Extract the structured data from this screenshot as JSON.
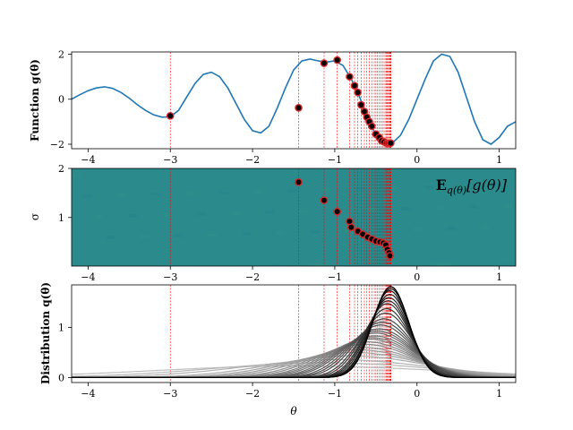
{
  "chart_data": [
    {
      "type": "line",
      "ylabel": "Function g(θ)",
      "xlim": [
        -4.2,
        1.2
      ],
      "ylim": [
        -2.2,
        2.1
      ],
      "xticks": [
        "−4",
        "−3",
        "−2",
        "−1",
        "0",
        "1"
      ],
      "xtick_values": [
        -4,
        -3,
        -2,
        -1,
        0,
        1
      ],
      "yticks": [
        "−2",
        "0",
        "2"
      ],
      "ytick_values": [
        -2,
        0,
        2
      ],
      "line_color": "#1f77b4",
      "curve": {
        "x": [
          -4.2,
          -4.1,
          -4.0,
          -3.9,
          -3.8,
          -3.7,
          -3.6,
          -3.5,
          -3.4,
          -3.3,
          -3.2,
          -3.1,
          -3.0,
          -2.9,
          -2.8,
          -2.7,
          -2.6,
          -2.5,
          -2.4,
          -2.3,
          -2.2,
          -2.1,
          -2.0,
          -1.9,
          -1.8,
          -1.7,
          -1.6,
          -1.5,
          -1.4,
          -1.3,
          -1.2,
          -1.1,
          -1.0,
          -0.9,
          -0.8,
          -0.7,
          -0.6,
          -0.5,
          -0.4,
          -0.3,
          -0.2,
          -0.1,
          0.0,
          0.1,
          0.2,
          0.3,
          0.4,
          0.5,
          0.6,
          0.7,
          0.8,
          0.9,
          1.0,
          1.1,
          1.2
        ],
        "y": [
          0.0,
          0.2,
          0.38,
          0.5,
          0.55,
          0.48,
          0.3,
          0.05,
          -0.25,
          -0.5,
          -0.7,
          -0.8,
          -0.78,
          -0.5,
          0.1,
          0.7,
          1.1,
          1.2,
          1.0,
          0.5,
          -0.2,
          -0.9,
          -1.4,
          -1.5,
          -1.2,
          -0.4,
          0.5,
          1.3,
          1.7,
          1.78,
          1.7,
          1.65,
          1.7,
          1.5,
          0.9,
          0.1,
          -0.8,
          -1.6,
          -2.0,
          -1.95,
          -1.6,
          -0.9,
          0.0,
          0.9,
          1.7,
          2.0,
          1.9,
          1.2,
          0.1,
          -1.0,
          -1.8,
          -2.0,
          -1.7,
          -1.2,
          -1.0
        ]
      },
      "markers": {
        "x": [
          -3.0,
          -1.44,
          -1.13,
          -0.97,
          -0.82,
          -0.76,
          -0.72,
          -0.68,
          -0.64,
          -0.61,
          -0.58,
          -0.55,
          -0.5,
          -0.46,
          -0.43,
          -0.4,
          -0.37,
          -0.35,
          -0.33,
          -0.32
        ],
        "y": [
          -0.74,
          -0.38,
          1.6,
          1.74,
          1.0,
          0.6,
          0.3,
          -0.25,
          -0.55,
          -0.8,
          -1.0,
          -1.2,
          -1.55,
          -1.7,
          -1.85,
          -1.9,
          -1.95,
          -1.95,
          -1.95,
          -1.95
        ]
      }
    },
    {
      "type": "heatmap",
      "ylabel": "σ",
      "annotation": "E_{q(θ)}[g(θ)]",
      "xlim": [
        -4.2,
        1.2
      ],
      "ylim": [
        0.01,
        2.0
      ],
      "xticks": [
        "−4",
        "−3",
        "−2",
        "−1",
        "0",
        "1"
      ],
      "xtick_values": [
        -4,
        -3,
        -2,
        -1,
        0,
        1
      ],
      "yticks": [
        "1",
        "2"
      ],
      "ytick_values": [
        1,
        2
      ],
      "colormap": "viridis",
      "background_color": "#2a8a8c",
      "markers": {
        "x": [
          -1.44,
          -1.13,
          -0.97,
          -0.82,
          -0.8,
          -0.72,
          -0.66,
          -0.6,
          -0.55,
          -0.5,
          -0.45,
          -0.41,
          -0.38,
          -0.36,
          -0.34,
          -0.33
        ],
        "y": [
          1.72,
          1.35,
          1.12,
          0.92,
          0.8,
          0.72,
          0.66,
          0.6,
          0.56,
          0.52,
          0.5,
          0.48,
          0.44,
          0.35,
          0.28,
          0.22
        ]
      }
    },
    {
      "type": "line",
      "ylabel": "Distribution q(θ)",
      "xlabel": "θ",
      "xlim": [
        -4.2,
        1.2
      ],
      "ylim": [
        -0.1,
        1.85
      ],
      "xticks": [
        "−4",
        "−3",
        "−2",
        "−1",
        "0",
        "1"
      ],
      "xtick_values": [
        -4,
        -3,
        -2,
        -1,
        0,
        1
      ],
      "yticks": [
        "0",
        "1"
      ],
      "ytick_values": [
        0,
        1
      ],
      "gaussians": {
        "mu": [
          -1.44,
          -1.13,
          -0.97,
          -0.82,
          -0.76,
          -0.72,
          -0.68,
          -0.64,
          -0.61,
          -0.58,
          -0.55,
          -0.52,
          -0.5,
          -0.48,
          -0.46,
          -0.44,
          -0.42,
          -0.4,
          -0.38,
          -0.37,
          -0.36,
          -0.35,
          -0.34,
          -0.33,
          -0.33,
          -0.32,
          -0.32,
          -0.32
        ],
        "sigma": [
          1.72,
          1.35,
          1.12,
          0.92,
          0.8,
          0.72,
          0.66,
          0.6,
          0.56,
          0.52,
          0.5,
          0.48,
          0.45,
          0.43,
          0.41,
          0.38,
          0.36,
          0.34,
          0.31,
          0.29,
          0.27,
          0.26,
          0.25,
          0.24,
          0.23,
          0.225,
          0.22,
          0.22
        ]
      }
    }
  ],
  "vlines": {
    "color": "#ff0000",
    "x": [
      -3.0,
      -1.44,
      -1.13,
      -0.97,
      -0.82,
      -0.76,
      -0.72,
      -0.68,
      -0.64,
      -0.61,
      -0.58,
      -0.55,
      -0.52,
      -0.5,
      -0.48,
      -0.46,
      -0.44,
      -0.42,
      -0.4,
      -0.38,
      -0.37,
      -0.36,
      -0.35,
      -0.34,
      -0.33,
      -0.33,
      -0.32,
      -0.32,
      -0.32,
      -0.32,
      -0.32
    ]
  }
}
